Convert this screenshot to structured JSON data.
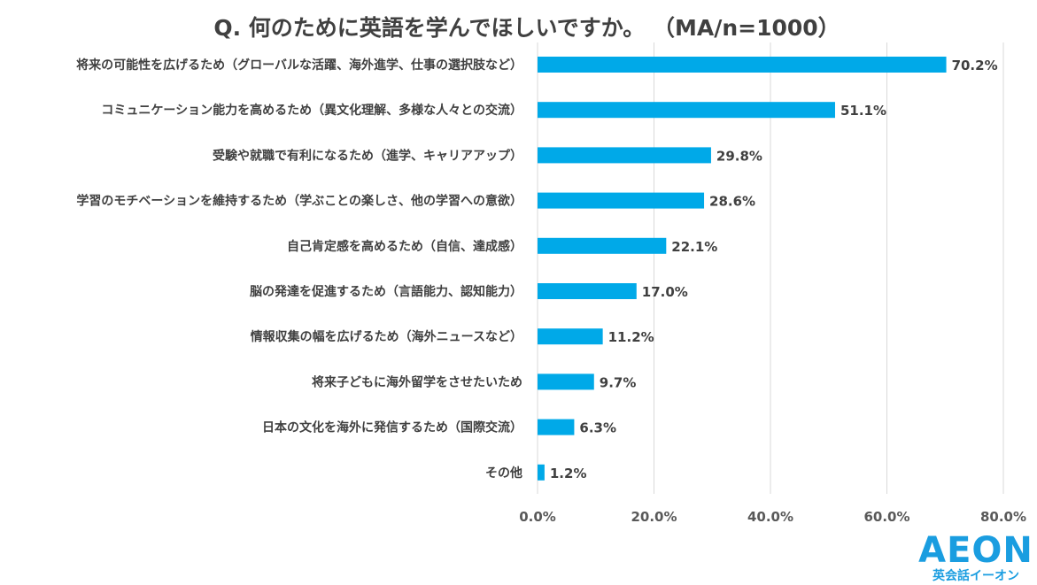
{
  "chart_data": {
    "type": "bar",
    "orientation": "horizontal",
    "title": "Q. 何のために英語を学んでほしいですか。 （MA/n=1000）",
    "categories": [
      "将来の可能性を広げるため（グローバルな活躍、海外進学、仕事の選択肢など）",
      "コミュニケーション能力を高めるため（異文化理解、多様な人々との交流）",
      "受験や就職で有利になるため（進学、キャリアアップ）",
      "学習のモチベーションを維持するため（学ぶことの楽しさ、他の学習への意欲）",
      "自己肯定感を高めるため（自信、達成感）",
      "脳の発達を促進するため（言語能力、認知能力）",
      "情報収集の幅を広げるため（海外ニュースなど）",
      "将来子どもに海外留学をさせたいため",
      "日本の文化を海外に発信するため（国際交流）",
      "その他"
    ],
    "values": [
      70.2,
      51.1,
      29.8,
      28.6,
      22.1,
      17.0,
      11.2,
      9.7,
      6.3,
      1.2
    ],
    "data_labels": [
      "70.2%",
      "51.1%",
      "29.8%",
      "28.6%",
      "22.1%",
      "17.0%",
      "11.2%",
      "9.7%",
      "6.3%",
      "1.2%"
    ],
    "xlim": [
      0,
      80
    ],
    "xticks": [
      0,
      20,
      40,
      60,
      80
    ],
    "xtick_labels": [
      "0.0%",
      "20.0%",
      "40.0%",
      "60.0%",
      "80.0%"
    ],
    "grid": true,
    "bar_color": "#00a9e8"
  },
  "logo": {
    "text": "AEON",
    "subtext": "英会話イーオン",
    "color": "#1a9de0"
  }
}
